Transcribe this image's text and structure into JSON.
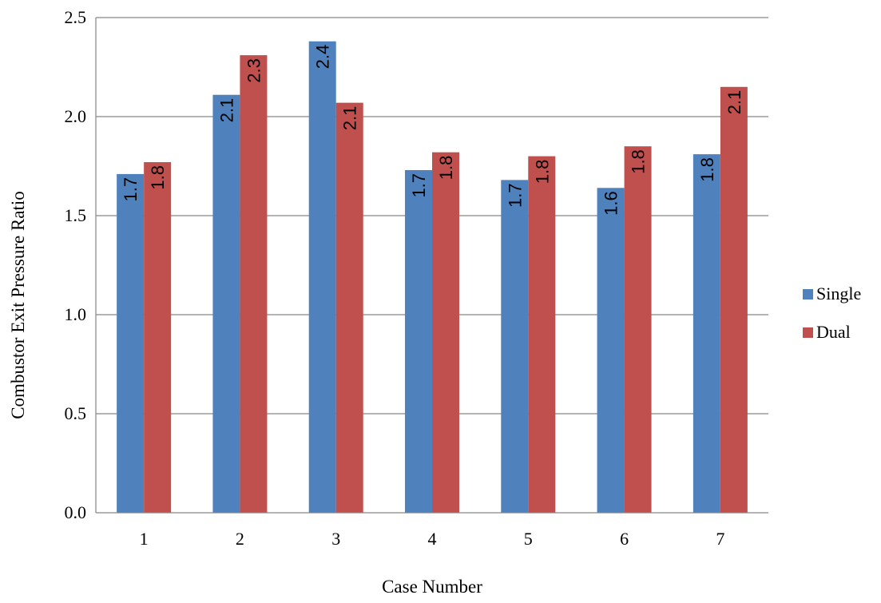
{
  "chart_data": {
    "type": "bar",
    "title": "",
    "xlabel": "Case Number",
    "ylabel": "Combustor Exit Pressure Ratio",
    "categories": [
      "1",
      "2",
      "3",
      "4",
      "5",
      "6",
      "7"
    ],
    "series": [
      {
        "name": "Single",
        "color": "#4F81BD",
        "values": [
          1.71,
          2.11,
          2.38,
          1.73,
          1.68,
          1.64,
          1.81
        ],
        "labels": [
          "1.7",
          "2.1",
          "2.4",
          "1.7",
          "1.7",
          "1.6",
          "1.8"
        ]
      },
      {
        "name": "Dual",
        "color": "#C0504D",
        "values": [
          1.77,
          2.31,
          2.07,
          1.82,
          1.8,
          1.85,
          2.15
        ],
        "labels": [
          "1.8",
          "2.3",
          "2.1",
          "1.8",
          "1.8",
          "1.8",
          "2.1"
        ]
      }
    ],
    "ylim": [
      0,
      2.5
    ],
    "yticks": [
      "0.0",
      "0.5",
      "1.0",
      "1.5",
      "2.0",
      "2.5"
    ],
    "grid": true,
    "legend_position": "right"
  }
}
